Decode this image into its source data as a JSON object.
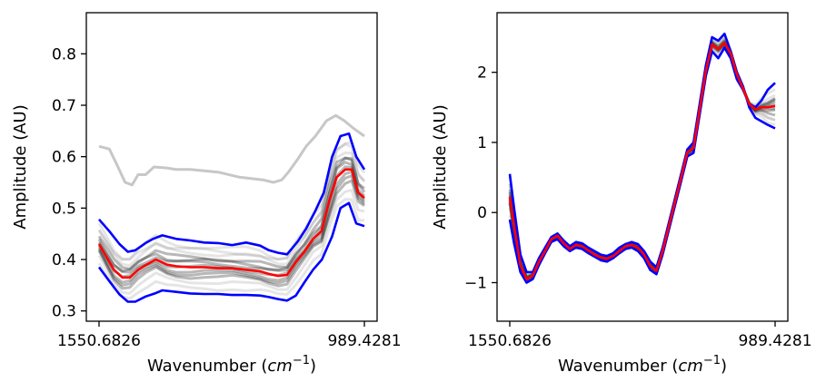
{
  "chart_data": [
    {
      "type": "line",
      "title": "",
      "xlabel": "Wavenumber",
      "xlabel_math": "cm",
      "xlabel_exp": "−1",
      "ylabel": "Amplitude (AU)",
      "x_range": [
        1550.6826,
        989.4281
      ],
      "x_ticks": [
        "1550.6826",
        "989.4281"
      ],
      "ylim": [
        0.28,
        0.88
      ],
      "y_ticks": [
        0.3,
        0.4,
        0.5,
        0.6,
        0.7,
        0.8
      ],
      "y_tick_labels": [
        "0.3",
        "0.4",
        "0.5",
        "0.6",
        "0.7",
        "0.8"
      ],
      "grid": false,
      "series": [
        {
          "role": "individual spectra (outlier)",
          "color": "#b4b4b4",
          "x": [
            1550.68,
            1529.03,
            1513.27,
            1495.55,
            1480.78,
            1467.99,
            1452.25,
            1434.54,
            1406.97,
            1387.3,
            1357.77,
            1298.72,
            1253.44,
            1204.23,
            1181.61,
            1163.89,
            1150.12,
            1130.44,
            1112.72,
            1093.04,
            1069.42,
            1049.74,
            1032.02,
            1012.34,
            989.43
          ],
          "values": [
            0.62,
            0.615,
            0.585,
            0.55,
            0.545,
            0.565,
            0.565,
            0.58,
            0.578,
            0.575,
            0.575,
            0.57,
            0.56,
            0.555,
            0.55,
            0.555,
            0.57,
            0.595,
            0.62,
            0.64,
            0.67,
            0.68,
            0.67,
            0.655,
            0.64
          ]
        },
        {
          "role": "upper band",
          "color": "#0000ff",
          "x": [
            1550.68,
            1529.03,
            1507.37,
            1489.66,
            1473.9,
            1452.25,
            1436.5,
            1416.82,
            1387.3,
            1357.77,
            1328.25,
            1298.72,
            1269.19,
            1239.66,
            1210.13,
            1191.45,
            1171.76,
            1153.06,
            1130.44,
            1112.72,
            1093.04,
            1075.32,
            1057.61,
            1039.89,
            1022.18,
            1006.44,
            989.43
          ],
          "values": [
            0.478,
            0.455,
            0.43,
            0.415,
            0.418,
            0.432,
            0.44,
            0.447,
            0.44,
            0.437,
            0.433,
            0.432,
            0.428,
            0.433,
            0.427,
            0.418,
            0.413,
            0.41,
            0.435,
            0.46,
            0.495,
            0.53,
            0.6,
            0.64,
            0.645,
            0.6,
            0.575
          ]
        },
        {
          "role": "mean",
          "color": "#ff0000",
          "x": [
            1550.68,
            1534.94,
            1519.17,
            1501.46,
            1485.72,
            1467.99,
            1450.28,
            1430.6,
            1406.97,
            1387.3,
            1357.77,
            1328.25,
            1298.72,
            1269.19,
            1239.66,
            1210.13,
            1191.45,
            1171.76,
            1153.06,
            1134.37,
            1116.66,
            1097.96,
            1080.24,
            1063.52,
            1047.77,
            1030.05,
            1016.28,
            1002.5,
            989.43
          ],
          "values": [
            0.43,
            0.405,
            0.38,
            0.365,
            0.365,
            0.38,
            0.39,
            0.4,
            0.39,
            0.387,
            0.385,
            0.385,
            0.383,
            0.383,
            0.38,
            0.377,
            0.372,
            0.368,
            0.37,
            0.395,
            0.415,
            0.44,
            0.455,
            0.515,
            0.56,
            0.575,
            0.575,
            0.53,
            0.52
          ]
        },
        {
          "role": "lower band",
          "color": "#0000ff",
          "x": [
            1550.68,
            1529.03,
            1507.37,
            1489.66,
            1473.9,
            1452.25,
            1432.57,
            1416.82,
            1387.3,
            1357.77,
            1328.25,
            1298.72,
            1269.19,
            1239.66,
            1210.13,
            1191.45,
            1171.76,
            1153.06,
            1134.37,
            1116.66,
            1097.96,
            1079.26,
            1057.61,
            1039.89,
            1022.18,
            1006.44,
            989.43
          ],
          "values": [
            0.385,
            0.358,
            0.332,
            0.318,
            0.318,
            0.328,
            0.334,
            0.34,
            0.337,
            0.334,
            0.333,
            0.333,
            0.331,
            0.331,
            0.33,
            0.327,
            0.323,
            0.32,
            0.33,
            0.355,
            0.38,
            0.4,
            0.445,
            0.5,
            0.51,
            0.47,
            0.465
          ]
        }
      ]
    },
    {
      "type": "line",
      "title": "",
      "xlabel": "Wavenumber",
      "xlabel_math": "cm",
      "xlabel_exp": "−1",
      "ylabel": "Amplitude (AU)",
      "x_range": [
        1550.6826,
        989.4281
      ],
      "x_ticks": [
        "1550.6826",
        "989.4281"
      ],
      "ylim": [
        -1.55,
        2.85
      ],
      "y_ticks": [
        -1,
        0,
        1,
        2
      ],
      "y_tick_labels": [
        "−1",
        "0",
        "1",
        "2"
      ],
      "grid": false,
      "series": [
        {
          "role": "upper band",
          "color": "#0000ff",
          "x": [
            1550.68,
            1541.34,
            1528.26,
            1515.18,
            1502.1,
            1489.01,
            1475.93,
            1462.85,
            1449.77,
            1436.69,
            1423.61,
            1410.53,
            1397.45,
            1384.36,
            1371.28,
            1358.2,
            1345.12,
            1332.04,
            1318.96,
            1305.88,
            1292.8,
            1279.72,
            1266.63,
            1253.55,
            1240.47,
            1227.39,
            1214.31,
            1201.23,
            1188.15,
            1175.07,
            1161.98,
            1148.9,
            1135.82,
            1122.74,
            1109.66,
            1096.58,
            1083.5,
            1070.42,
            1057.33,
            1044.25,
            1031.17,
            1018.09,
            1005.01,
            989.43
          ],
          "values": [
            0.55,
            0.05,
            -0.6,
            -0.85,
            -0.85,
            -0.65,
            -0.5,
            -0.35,
            -0.3,
            -0.4,
            -0.48,
            -0.42,
            -0.44,
            -0.5,
            -0.55,
            -0.6,
            -0.62,
            -0.58,
            -0.5,
            -0.45,
            -0.42,
            -0.45,
            -0.55,
            -0.7,
            -0.78,
            -0.5,
            -0.15,
            0.2,
            0.55,
            0.9,
            1.0,
            1.55,
            2.1,
            2.5,
            2.45,
            2.55,
            2.3,
            2.0,
            1.8,
            1.5,
            1.35,
            1.3,
            1.25,
            1.2
          ]
        },
        {
          "role": "lower band",
          "color": "#0000ff",
          "x": [
            1550.68,
            1541.34,
            1528.26,
            1515.18,
            1502.1,
            1489.01,
            1475.93,
            1462.85,
            1449.77,
            1436.69,
            1423.61,
            1410.53,
            1397.45,
            1384.36,
            1371.28,
            1358.2,
            1345.12,
            1332.04,
            1318.96,
            1305.88,
            1292.8,
            1279.72,
            1266.63,
            1253.55,
            1240.47,
            1227.39,
            1214.31,
            1201.23,
            1188.15,
            1175.07,
            1161.98,
            1148.9,
            1135.82,
            1122.74,
            1109.66,
            1096.58,
            1083.5,
            1070.42,
            1057.33,
            1044.25,
            1031.17,
            1018.09,
            1005.01,
            989.43
          ],
          "values": [
            -0.1,
            -0.45,
            -0.85,
            -1.0,
            -0.95,
            -0.75,
            -0.58,
            -0.42,
            -0.38,
            -0.48,
            -0.55,
            -0.5,
            -0.52,
            -0.58,
            -0.63,
            -0.68,
            -0.7,
            -0.65,
            -0.58,
            -0.52,
            -0.5,
            -0.55,
            -0.65,
            -0.82,
            -0.88,
            -0.6,
            -0.25,
            0.1,
            0.45,
            0.8,
            0.85,
            1.4,
            1.95,
            2.3,
            2.2,
            2.35,
            2.2,
            1.9,
            1.75,
            1.55,
            1.5,
            1.6,
            1.75,
            1.85
          ]
        },
        {
          "role": "mean",
          "color": "#ff0000",
          "x": [
            1550.68,
            1541.34,
            1528.26,
            1515.18,
            1502.1,
            1489.01,
            1475.93,
            1462.85,
            1449.77,
            1436.69,
            1423.61,
            1410.53,
            1397.45,
            1384.36,
            1371.28,
            1358.2,
            1345.12,
            1332.04,
            1318.96,
            1305.88,
            1292.8,
            1279.72,
            1266.63,
            1253.55,
            1240.47,
            1227.39,
            1214.31,
            1201.23,
            1188.15,
            1175.07,
            1161.98,
            1148.9,
            1135.82,
            1122.74,
            1109.66,
            1096.58,
            1083.5,
            1070.42,
            1057.33,
            1044.25,
            1031.17,
            1018.09,
            1005.01,
            989.43
          ],
          "values": [
            0.22,
            -0.2,
            -0.75,
            -0.95,
            -0.9,
            -0.7,
            -0.55,
            -0.38,
            -0.33,
            -0.44,
            -0.52,
            -0.46,
            -0.48,
            -0.54,
            -0.6,
            -0.64,
            -0.66,
            -0.62,
            -0.55,
            -0.48,
            -0.46,
            -0.5,
            -0.6,
            -0.76,
            -0.83,
            -0.55,
            -0.2,
            0.15,
            0.5,
            0.86,
            0.92,
            1.47,
            2.02,
            2.4,
            2.33,
            2.42,
            2.27,
            1.97,
            1.77,
            1.55,
            1.47,
            1.5,
            1.5,
            1.52
          ]
        }
      ]
    }
  ]
}
